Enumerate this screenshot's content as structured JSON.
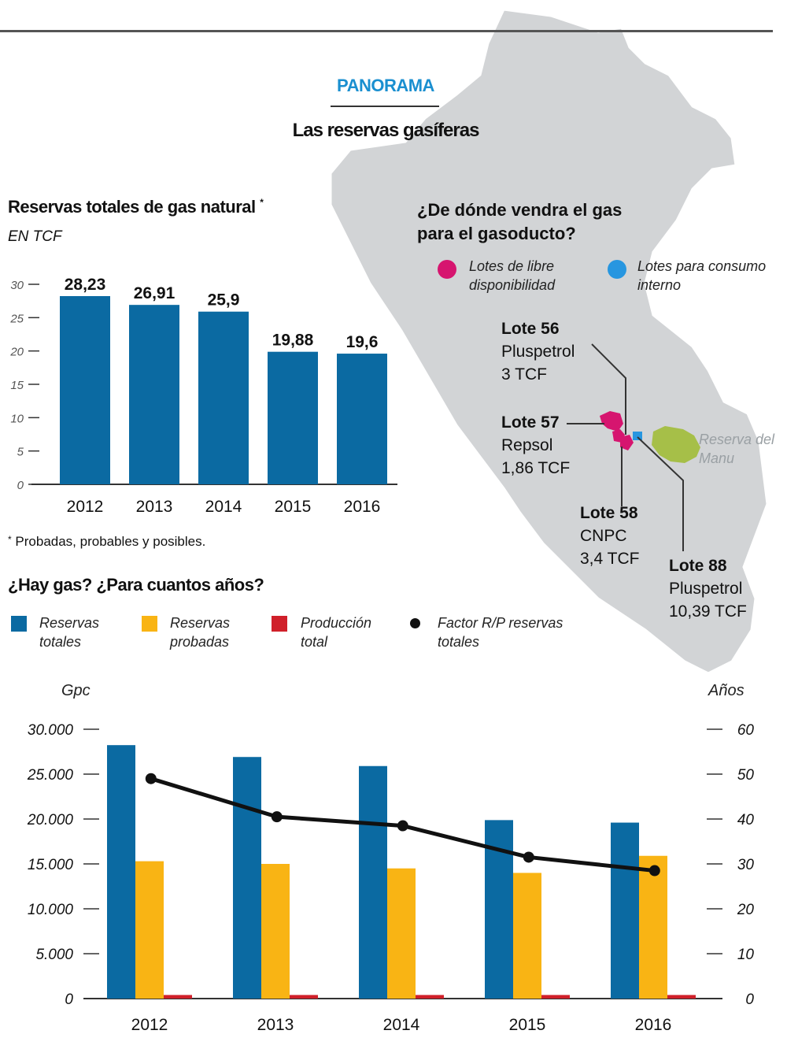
{
  "header": {
    "kicker": "PANORAMA",
    "headline": "Las reservas gasíferas"
  },
  "colors": {
    "blue": "#0b6aa2",
    "orange": "#f9b414",
    "red": "#d0202a",
    "black": "#111111",
    "magenta": "#d6156f",
    "lightblue": "#2796e0",
    "manu_green": "#a6bf48",
    "map_gray": "#d2d4d6"
  },
  "chart1": {
    "title": "Reservas totales de gas natural",
    "title_mark": "*",
    "unit": "EN TCF",
    "footnote": "Probadas, probables y posibles."
  },
  "chart2": {
    "title": "¿Hay gas? ¿Para cuantos años?",
    "left_unit": "Gpc",
    "right_unit": "Años"
  },
  "map": {
    "question": "¿De dónde vendra el gas para el gasoducto?",
    "legend": [
      {
        "label": "Lotes de libre disponibilidad",
        "color": "#d6156f"
      },
      {
        "label": "Lotes para consumo interno",
        "color": "#2796e0"
      }
    ],
    "lotes": [
      {
        "name": "Lote 56",
        "company": "Pluspetrol",
        "reserve": "3 TCF"
      },
      {
        "name": "Lote 57",
        "company": "Repsol",
        "reserve": "1,86 TCF"
      },
      {
        "name": "Lote 58",
        "company": "CNPC",
        "reserve": "3,4 TCF"
      },
      {
        "name": "Lote 88",
        "company": "Pluspetrol",
        "reserve": "10,39 TCF"
      }
    ],
    "manu_label": "Reserva del Manu"
  },
  "chart_data": [
    {
      "type": "bar",
      "title": "Reservas totales de gas natural",
      "ylabel": "EN TCF",
      "categories": [
        "2012",
        "2013",
        "2014",
        "2015",
        "2016"
      ],
      "values": [
        28.23,
        26.91,
        25.9,
        19.88,
        19.6
      ],
      "value_labels": [
        "28,23",
        "26,91",
        "25,9",
        "19,88",
        "19,6"
      ],
      "ylim": [
        0,
        30
      ],
      "yticks": [
        0,
        5,
        10,
        15,
        20,
        25,
        30
      ],
      "color": "#0b6aa2",
      "grid": false
    },
    {
      "type": "bar",
      "title": "¿Hay gas? ¿Para cuantos años?",
      "categories": [
        "2012",
        "2013",
        "2014",
        "2015",
        "2016"
      ],
      "series": [
        {
          "name": "Reservas totales",
          "axis": "left",
          "color": "#0b6aa2",
          "values": [
            28230,
            26910,
            25900,
            19880,
            19600
          ]
        },
        {
          "name": "Reservas probadas",
          "axis": "left",
          "color": "#f9b414",
          "values": [
            15300,
            15000,
            14500,
            14000,
            15900
          ]
        },
        {
          "name": "Producción total",
          "axis": "left",
          "color": "#d0202a",
          "values": [
            400,
            400,
            400,
            400,
            400
          ]
        },
        {
          "name": "Factor R/P reservas totales",
          "axis": "right",
          "type": "line",
          "color": "#111111",
          "values": [
            49,
            40.5,
            38.5,
            31.5,
            28.5
          ]
        }
      ],
      "ylabel": "Gpc",
      "y2label": "Años",
      "ylim": [
        0,
        30000
      ],
      "y2lim": [
        0,
        60
      ],
      "yticks": [
        0,
        5000,
        10000,
        15000,
        20000,
        25000,
        30000
      ],
      "ytick_labels": [
        "0",
        "5.000",
        "10.000",
        "15.000",
        "20.000",
        "25.000",
        "30.000"
      ],
      "y2ticks": [
        0,
        10,
        20,
        30,
        40,
        50,
        60
      ],
      "legend_position": "top",
      "grid": false
    }
  ]
}
